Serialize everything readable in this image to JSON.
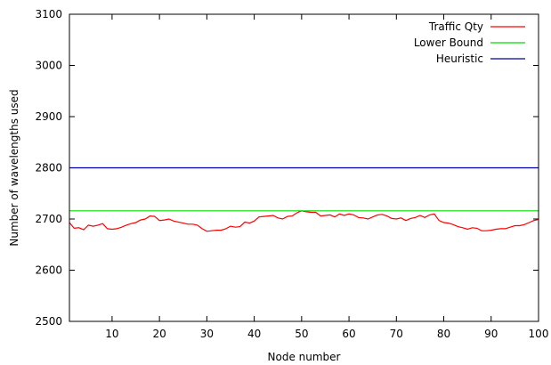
{
  "chart_data": {
    "type": "line",
    "title": "",
    "xlabel": "Node number",
    "ylabel": "Number of wavelengths used",
    "xlim": [
      1,
      100
    ],
    "ylim": [
      2500,
      3100
    ],
    "x_ticks": [
      10,
      20,
      30,
      40,
      50,
      60,
      70,
      80,
      90,
      100
    ],
    "y_ticks": [
      2500,
      2600,
      2700,
      2800,
      2900,
      3000,
      3100
    ],
    "grid": false,
    "legend_position": "top-right",
    "series": [
      {
        "name": "Traffic Qty",
        "color": "#ff0000",
        "x": [
          1,
          2,
          3,
          4,
          5,
          6,
          7,
          8,
          9,
          10,
          11,
          12,
          13,
          14,
          15,
          16,
          17,
          18,
          19,
          20,
          21,
          22,
          23,
          24,
          25,
          26,
          27,
          28,
          29,
          30,
          31,
          32,
          33,
          34,
          35,
          36,
          37,
          38,
          39,
          40,
          41,
          42,
          43,
          44,
          45,
          46,
          47,
          48,
          49,
          50,
          51,
          52,
          53,
          54,
          55,
          56,
          57,
          58,
          59,
          60,
          61,
          62,
          63,
          64,
          65,
          66,
          67,
          68,
          69,
          70,
          71,
          72,
          73,
          74,
          75,
          76,
          77,
          78,
          79,
          80,
          81,
          82,
          83,
          84,
          85,
          86,
          87,
          88,
          89,
          90,
          91,
          92,
          93,
          94,
          95,
          96,
          97,
          98,
          99,
          100
        ],
        "values": [
          2693,
          2682,
          2683,
          2679,
          2688,
          2686,
          2688,
          2691,
          2681,
          2680,
          2681,
          2684,
          2688,
          2691,
          2693,
          2698,
          2700,
          2706,
          2705,
          2697,
          2698,
          2700,
          2696,
          2694,
          2692,
          2690,
          2690,
          2688,
          2681,
          2676,
          2677,
          2678,
          2678,
          2681,
          2686,
          2684,
          2685,
          2694,
          2692,
          2696,
          2704,
          2705,
          2706,
          2707,
          2702,
          2700,
          2705,
          2706,
          2712,
          2716,
          2714,
          2713,
          2713,
          2706,
          2707,
          2708,
          2704,
          2710,
          2707,
          2710,
          2708,
          2703,
          2702,
          2700,
          2704,
          2708,
          2709,
          2706,
          2701,
          2700,
          2702,
          2697,
          2701,
          2703,
          2707,
          2703,
          2708,
          2710,
          2697,
          2693,
          2692,
          2689,
          2685,
          2683,
          2680,
          2683,
          2682,
          2677,
          2677,
          2678,
          2680,
          2681,
          2681,
          2684,
          2687,
          2687,
          2689,
          2693,
          2697,
          2699
        ]
      },
      {
        "name": "Lower Bound",
        "color": "#00dd00",
        "x": [
          1,
          100
        ],
        "values": [
          2716,
          2716
        ]
      },
      {
        "name": "Heuristic",
        "color": "#0000aa",
        "x": [
          1,
          100
        ],
        "values": [
          2800,
          2800
        ]
      }
    ]
  }
}
